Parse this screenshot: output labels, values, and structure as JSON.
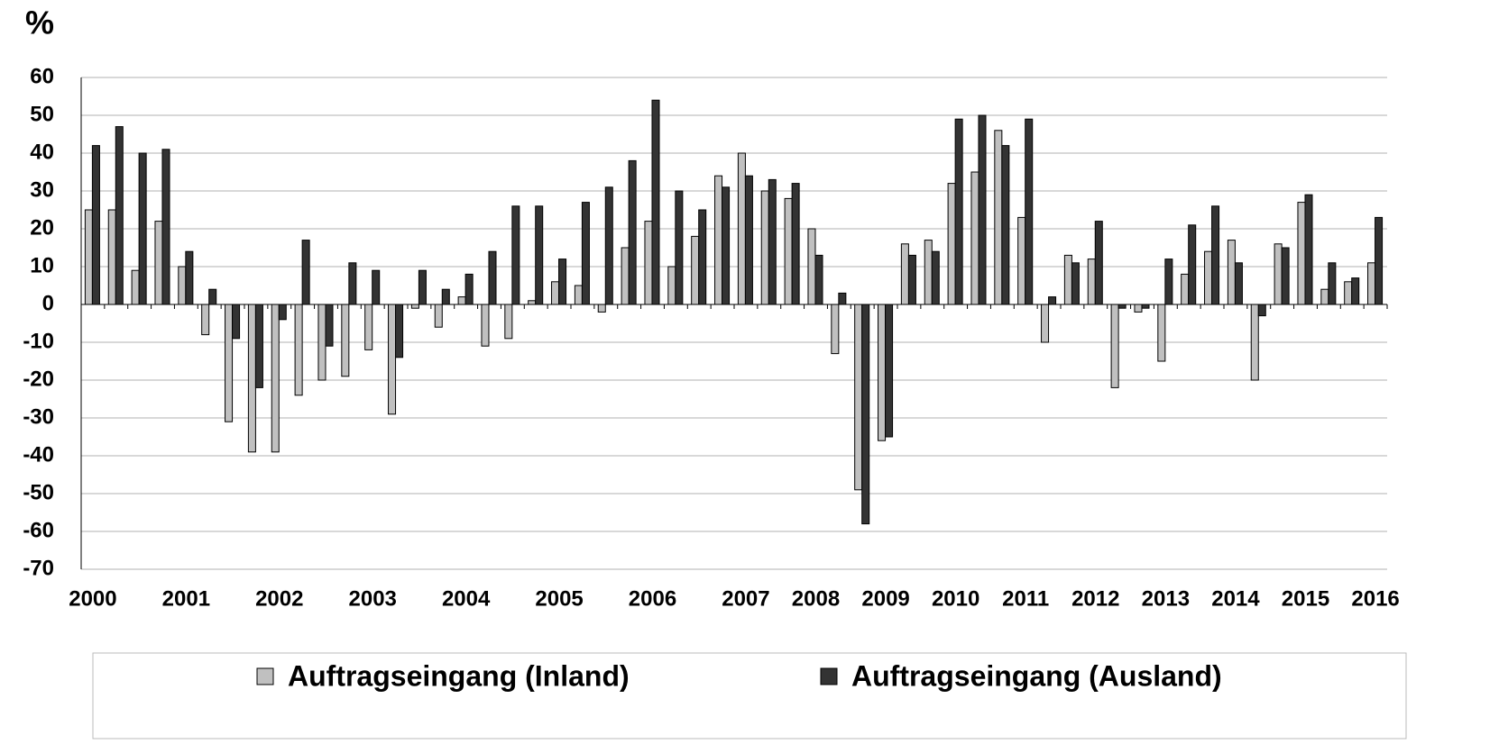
{
  "chart_data": {
    "type": "bar",
    "title": "%",
    "categories": [
      "2000",
      null,
      null,
      null,
      "2001",
      null,
      null,
      null,
      "2002",
      null,
      null,
      null,
      "2003",
      null,
      null,
      null,
      "2004",
      null,
      null,
      null,
      "2005",
      null,
      null,
      null,
      "2006",
      null,
      null,
      null,
      "2007",
      null,
      null,
      "2008",
      null,
      null,
      "2009",
      null,
      null,
      "2010",
      null,
      null,
      "2011",
      null,
      null,
      "2012",
      null,
      null,
      "2013",
      null,
      null,
      "2014",
      null,
      null,
      "2015",
      null,
      null,
      "2016"
    ],
    "series": [
      {
        "name": "Auftragseingang (Inland)",
        "color": "#c0c0c0",
        "values": [
          25,
          25,
          9,
          22,
          10,
          -8,
          -31,
          -39,
          -39,
          -24,
          -20,
          -19,
          -12,
          -29,
          -1,
          -6,
          2,
          -11,
          -9,
          1,
          6,
          5,
          -2,
          15,
          22,
          10,
          18,
          34,
          40,
          30,
          28,
          20,
          -13,
          -49,
          -36,
          16,
          17,
          32,
          35,
          46,
          23,
          -10,
          13,
          12,
          -22,
          -2,
          -15,
          8,
          14,
          17,
          -20,
          16,
          27,
          4,
          6,
          11
        ]
      },
      {
        "name": "Auftragseingang (Ausland)",
        "color": "#333333",
        "values": [
          42,
          47,
          40,
          41,
          14,
          4,
          -9,
          -22,
          -4,
          17,
          -11,
          11,
          9,
          -14,
          9,
          4,
          8,
          14,
          26,
          26,
          12,
          27,
          31,
          38,
          54,
          30,
          25,
          31,
          34,
          33,
          32,
          13,
          3,
          -58,
          -35,
          13,
          14,
          49,
          50,
          42,
          49,
          2,
          11,
          22,
          -1,
          -1,
          12,
          21,
          26,
          11,
          -3,
          15,
          29,
          11,
          7,
          23
        ]
      }
    ],
    "ylim": [
      -70,
      60
    ],
    "yticks": [
      -70,
      -60,
      -50,
      -40,
      -30,
      -20,
      -10,
      0,
      10,
      20,
      30,
      40,
      50,
      60
    ],
    "grid": true
  }
}
